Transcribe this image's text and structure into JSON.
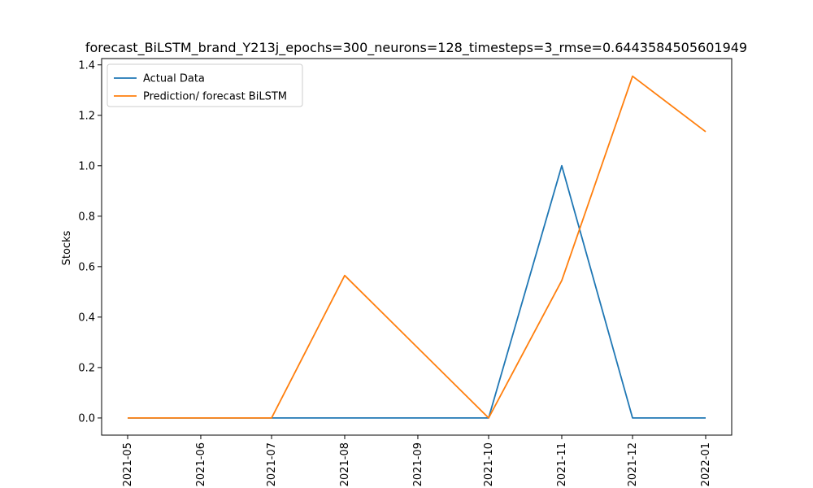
{
  "chart_data": {
    "type": "line",
    "title": "forecast_BiLSTM_brand_Y213j_epochs=300_neurons=128_timesteps=3_rmse=0.6443584505601949",
    "xlabel": "",
    "ylabel": "Stocks",
    "x": [
      "2021-05-01",
      "2021-06-01",
      "2021-07-01",
      "2021-08-01",
      "2021-09-01",
      "2021-10-01",
      "2021-11-01",
      "2021-12-01",
      "2022-01-01"
    ],
    "x_tick_labels": [
      "2021-05",
      "2021-06",
      "2021-07",
      "2021-08",
      "2021-09",
      "2021-10",
      "2021-11",
      "2021-12",
      "2022-01"
    ],
    "y_ticks": [
      0.0,
      0.2,
      0.4,
      0.6,
      0.8,
      1.0,
      1.2,
      1.4
    ],
    "y_tick_labels": [
      "0.0",
      "0.2",
      "0.4",
      "0.6",
      "0.8",
      "1.0",
      "1.2",
      "1.4"
    ],
    "ylim": [
      -0.068,
      1.425
    ],
    "grid": false,
    "legend_position": "top-left",
    "series": [
      {
        "name": "Actual Data",
        "color": "#1f77b4",
        "x": [
          "2021-05-01",
          "2021-06-01",
          "2021-07-01",
          "2021-08-01",
          "2021-09-01",
          "2021-10-01",
          "2021-11-01",
          "2021-12-01",
          "2022-01-01"
        ],
        "values": [
          0,
          0,
          0,
          0,
          0,
          0,
          1.0,
          0,
          0
        ]
      },
      {
        "name": "Prediction/ forecast BiLSTM",
        "color": "#ff7f0e",
        "x": [
          "2021-05-01",
          "2021-06-01",
          "2021-07-01",
          "2021-08-01",
          "2021-10-01",
          "2021-11-01",
          "2021-12-01",
          "2022-01-01"
        ],
        "values": [
          0,
          0,
          0,
          0.565,
          0,
          0.545,
          1.355,
          1.135
        ]
      }
    ]
  }
}
